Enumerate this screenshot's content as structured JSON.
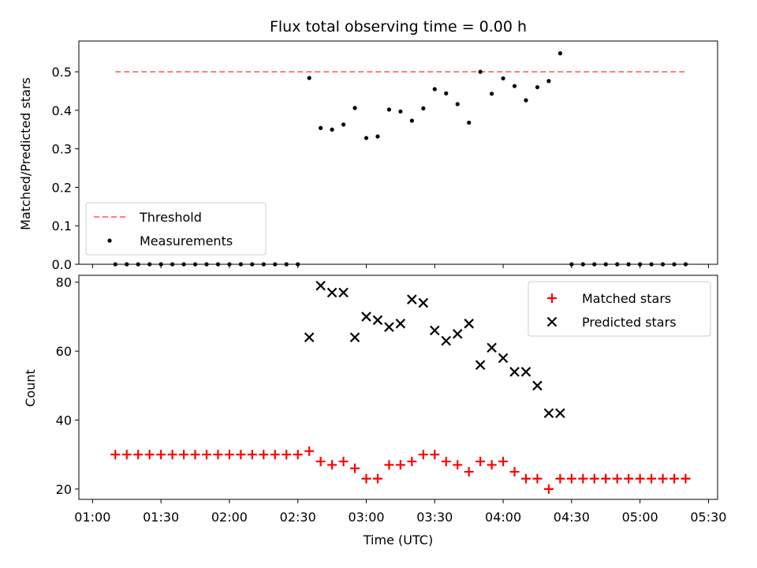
{
  "chart_data": [
    {
      "type": "scatter",
      "title": "Flux total observing time = 0.00 h",
      "xlabel": "",
      "ylabel": "Matched/Predicted stars",
      "ylim": [
        0,
        0.58
      ],
      "yticks": [
        0.0,
        0.1,
        0.2,
        0.3,
        0.4,
        0.5
      ],
      "legend": {
        "position": "lower-left",
        "entries": [
          "Threshold",
          "Measurements"
        ]
      },
      "threshold": {
        "name": "Threshold",
        "value": 0.5,
        "x_start": "01:10",
        "x_end": "05:20",
        "color": "#ff7f7f",
        "style": "dashed"
      },
      "series": [
        {
          "name": "Measurements",
          "color": "#000000",
          "x": [
            "01:10",
            "01:15",
            "01:20",
            "01:25",
            "01:30",
            "01:35",
            "01:40",
            "01:45",
            "01:50",
            "01:55",
            "02:00",
            "02:05",
            "02:10",
            "02:15",
            "02:20",
            "02:25",
            "02:30",
            "02:35",
            "02:40",
            "02:45",
            "02:50",
            "02:55",
            "03:00",
            "03:05",
            "03:10",
            "03:15",
            "03:20",
            "03:25",
            "03:30",
            "03:35",
            "03:40",
            "03:45",
            "03:50",
            "03:55",
            "04:00",
            "04:05",
            "04:10",
            "04:15",
            "04:20",
            "04:25",
            "04:30",
            "04:35",
            "04:40",
            "04:45",
            "04:50",
            "04:55",
            "05:00",
            "05:05",
            "05:10",
            "05:15",
            "05:20"
          ],
          "y": [
            0,
            0,
            0,
            0,
            0,
            0,
            0,
            0,
            0,
            0,
            0,
            0,
            0,
            0,
            0,
            0,
            0,
            0.484,
            0.354,
            0.35,
            0.363,
            0.406,
            0.328,
            0.332,
            0.402,
            0.397,
            0.373,
            0.405,
            0.455,
            0.444,
            0.416,
            0.368,
            0.5,
            0.443,
            0.483,
            0.463,
            0.426,
            0.46,
            0.476,
            0.548,
            0,
            0,
            0,
            0,
            0,
            0,
            0,
            0,
            0,
            0,
            0
          ]
        }
      ]
    },
    {
      "type": "scatter",
      "title": "",
      "xlabel": "Time (UTC)",
      "ylabel": "Count",
      "ylim": [
        17,
        82
      ],
      "yticks": [
        20,
        40,
        60,
        80
      ],
      "xlim": [
        "01:00",
        "05:30"
      ],
      "xticks": [
        "01:00",
        "01:30",
        "02:00",
        "02:30",
        "03:00",
        "03:30",
        "04:00",
        "04:30",
        "05:00",
        "05:30"
      ],
      "legend": {
        "position": "top-right",
        "entries": [
          "Matched stars",
          "Predicted stars"
        ]
      },
      "series": [
        {
          "name": "Matched stars",
          "marker": "+",
          "color": "#ff0000",
          "x": [
            "01:10",
            "01:15",
            "01:20",
            "01:25",
            "01:30",
            "01:35",
            "01:40",
            "01:45",
            "01:50",
            "01:55",
            "02:00",
            "02:05",
            "02:10",
            "02:15",
            "02:20",
            "02:25",
            "02:30",
            "02:35",
            "02:40",
            "02:45",
            "02:50",
            "02:55",
            "03:00",
            "03:05",
            "03:10",
            "03:15",
            "03:20",
            "03:25",
            "03:30",
            "03:35",
            "03:40",
            "03:45",
            "03:50",
            "03:55",
            "04:00",
            "04:05",
            "04:10",
            "04:15",
            "04:20",
            "04:25",
            "04:30",
            "04:35",
            "04:40",
            "04:45",
            "04:50",
            "04:55",
            "05:00",
            "05:05",
            "05:10",
            "05:15",
            "05:20"
          ],
          "y": [
            30,
            30,
            30,
            30,
            30,
            30,
            30,
            30,
            30,
            30,
            30,
            30,
            30,
            30,
            30,
            30,
            30,
            31,
            28,
            27,
            28,
            26,
            23,
            23,
            27,
            27,
            28,
            30,
            30,
            28,
            27,
            25,
            28,
            27,
            28,
            25,
            23,
            23,
            20,
            23,
            23,
            23,
            23,
            23,
            23,
            23,
            23,
            23,
            23,
            23,
            23
          ]
        },
        {
          "name": "Predicted stars",
          "marker": "x",
          "color": "#000000",
          "x": [
            "02:35",
            "02:40",
            "02:45",
            "02:50",
            "02:55",
            "03:00",
            "03:05",
            "03:10",
            "03:15",
            "03:20",
            "03:25",
            "03:30",
            "03:35",
            "03:40",
            "03:45",
            "03:50",
            "03:55",
            "04:00",
            "04:05",
            "04:10",
            "04:15",
            "04:20",
            "04:25"
          ],
          "y": [
            64,
            79,
            77,
            77,
            64,
            70,
            69,
            67,
            68,
            75,
            74,
            66,
            63,
            65,
            68,
            56,
            61,
            58,
            54,
            54,
            50,
            42,
            42
          ]
        }
      ]
    }
  ]
}
